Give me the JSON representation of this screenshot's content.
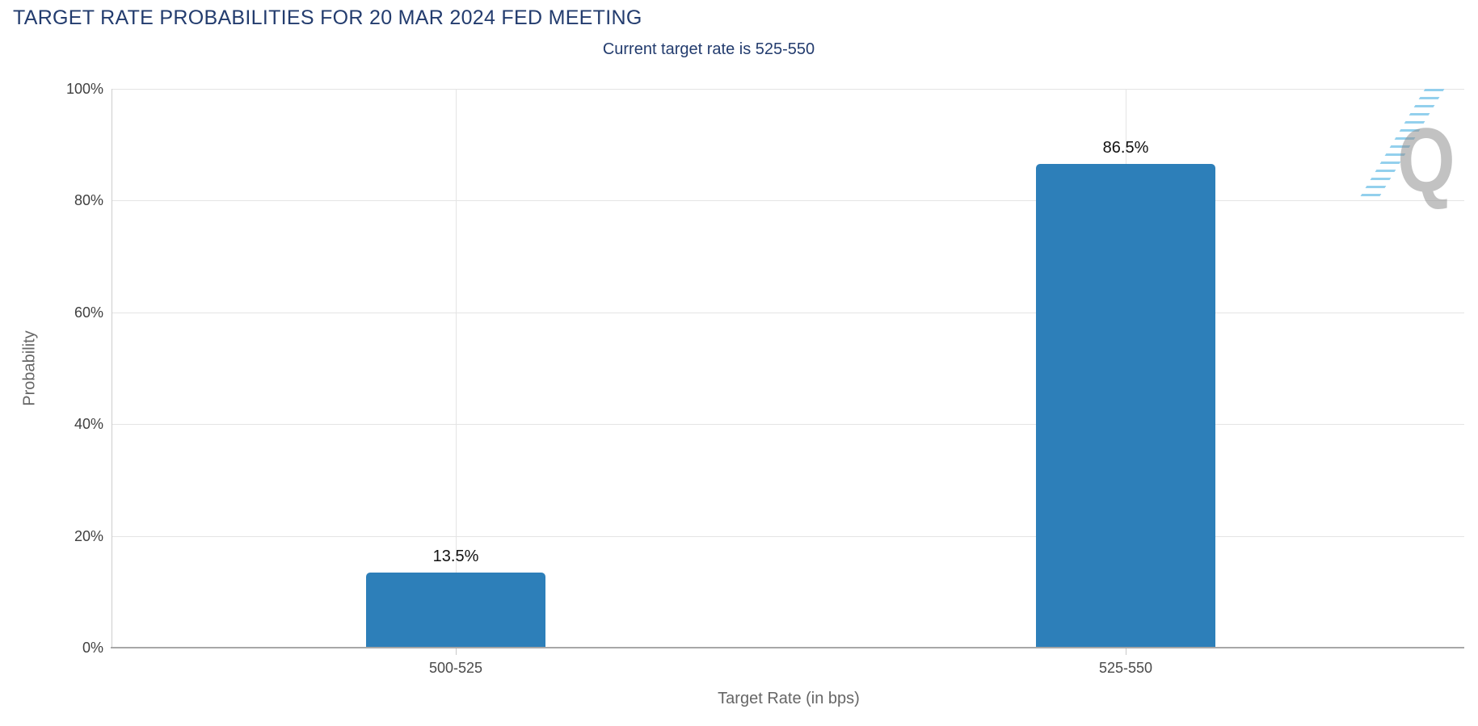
{
  "watermark": {
    "letter": "Q"
  },
  "chart_data": {
    "type": "bar",
    "title": "TARGET RATE PROBABILITIES FOR 20 MAR 2024 FED MEETING",
    "subtitle": "Current target rate is 525-550",
    "categories": [
      "500-525",
      "525-550"
    ],
    "values": [
      13.5,
      86.5
    ],
    "value_labels": [
      "13.5%",
      "86.5%"
    ],
    "xlabel": "Target Rate (in bps)",
    "ylabel": "Probability",
    "ylim": [
      0,
      100
    ],
    "ytick_interval": 20,
    "yticks": [
      "0%",
      "20%",
      "40%",
      "60%",
      "80%",
      "100%"
    ],
    "grid": true,
    "legend_position": "none",
    "colors": {
      "bar": "#2d7fb9",
      "title": "#233c6e",
      "axis_title": "#666666",
      "tick_label": "#404040",
      "gridline": "#e4e4e4"
    }
  }
}
